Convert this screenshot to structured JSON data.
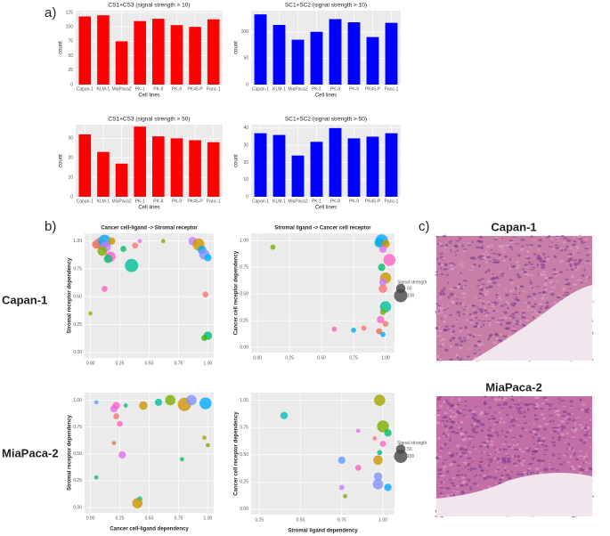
{
  "panel_labels": [
    "a)",
    "b)",
    "c)"
  ],
  "row_labels": [
    "Capan-1",
    "MiaPaca-2"
  ],
  "images": [
    {
      "title": "Capan-1"
    },
    {
      "title": "MiaPaca-2"
    }
  ],
  "chart_data": [
    {
      "type": "bar",
      "title": "CS1+CS3 (signal strength > 10)",
      "xlabel": "Cell lines",
      "ylabel": "count",
      "categories": [
        "Capan-1",
        "KLM-1",
        "MiaPaca2",
        "PK-1",
        "PK-8",
        "PK-9",
        "PK45-P",
        "Panc-1"
      ],
      "values": [
        118,
        120,
        75,
        110,
        114,
        103,
        100,
        113
      ],
      "color": "#ff0000",
      "ylim": [
        0,
        128
      ],
      "yticks": [
        0,
        25,
        50,
        75,
        100,
        125
      ],
      "grid": true
    },
    {
      "type": "bar",
      "title": "SC1+SC2 (signal strength > 10)",
      "xlabel": "Cell lines",
      "ylabel": "count",
      "categories": [
        "Capan-1",
        "KLM-1",
        "MiaPaca2",
        "PK-1",
        "PK-8",
        "PK-9",
        "PK45-P",
        "Panc-1"
      ],
      "values": [
        133,
        113,
        85,
        100,
        124,
        118,
        90,
        117
      ],
      "color": "#0000ff",
      "ylim": [
        0,
        140
      ],
      "yticks": [
        0,
        50,
        100
      ],
      "grid": true
    },
    {
      "type": "bar",
      "title": "CS1+CS3 (signal strength > 50)",
      "xlabel": "Cell lines",
      "ylabel": "count",
      "categories": [
        "Capan-1",
        "KLM-1",
        "MiaPaca2",
        "PK-1",
        "PK-8",
        "PK-9",
        "PK45-P",
        "Panc-1"
      ],
      "values": [
        32,
        23,
        17,
        36,
        31,
        30,
        29,
        28
      ],
      "color": "#ff0000",
      "ylim": [
        0,
        37
      ],
      "yticks": [
        0,
        10,
        20,
        30
      ],
      "grid": true
    },
    {
      "type": "bar",
      "title": "SC1+SC2 (signal strength > 50)",
      "xlabel": "Cell lines",
      "ylabel": "count",
      "categories": [
        "Capan-1",
        "KLM-1",
        "MiaPaca2",
        "PK-1",
        "PK-8",
        "PK-9",
        "PK45-P",
        "Panc-1"
      ],
      "values": [
        37,
        36,
        24,
        32,
        40,
        34,
        35,
        37
      ],
      "color": "#0000ff",
      "ylim": [
        0,
        42
      ],
      "yticks": [
        0,
        10,
        20,
        30,
        40
      ],
      "grid": true
    },
    {
      "type": "scatter",
      "title": "Cancer cell-ligand -> Stromal receptor",
      "ylabel": "Stromal receptor dependency",
      "x": [
        0.05,
        0.08,
        0.12,
        0.13,
        0.1,
        0.17,
        0.15,
        0.18,
        0.28,
        0.35,
        0.38,
        0.42,
        0.62,
        0.87,
        0.92,
        0.95,
        0.97,
        1.0,
        0.98,
        1.0,
        0.97,
        0.12,
        0.0
      ],
      "y": [
        0.97,
        0.98,
        1.0,
        0.95,
        0.91,
        0.86,
        0.84,
        1.0,
        0.93,
        0.78,
        0.96,
        1.0,
        1.0,
        1.0,
        0.97,
        0.92,
        0.88,
        0.85,
        0.52,
        0.15,
        0.13,
        0.57,
        0.35
      ],
      "sizes": [
        40,
        70,
        90,
        60,
        50,
        60,
        40,
        30,
        20,
        100,
        20,
        10,
        10,
        40,
        80,
        40,
        60,
        30,
        20,
        40,
        20,
        20,
        10
      ],
      "colors": [
        "#e8734a",
        "#f8766d",
        "#00a9ff",
        "#c77cff",
        "#7cae00",
        "#ff61c3",
        "#00bf7d",
        "#cd9600",
        "#00be67",
        "#00c19a",
        "#f8766d",
        "#e76bf3",
        "#7cae00",
        "#c77cff",
        "#cd9600",
        "#00a9ff",
        "#8494ff",
        "#00b0f6",
        "#f8766d",
        "#00bf7d",
        "#39b600",
        "#ff62bc",
        "#a3a500"
      ],
      "xlim": [
        -0.05,
        1.05
      ],
      "ylim": [
        -0.05,
        1.07
      ],
      "xticks": [
        {
          "value": 0,
          "label": "0.00"
        },
        {
          "value": 0.25,
          "label": "0.25"
        },
        {
          "value": 0.5,
          "label": "0.50"
        },
        {
          "value": 0.75,
          "label": "0.75"
        },
        {
          "value": 1,
          "label": "1.00"
        }
      ],
      "yticks": [
        {
          "value": 0,
          "label": "0.00"
        },
        {
          "value": 0.25,
          "label": "0.25"
        },
        {
          "value": 0.5,
          "label": "0.50"
        },
        {
          "value": 0.75,
          "label": "0.75"
        },
        {
          "value": 1,
          "label": "1.00"
        }
      ],
      "grid": true
    },
    {
      "type": "scatter",
      "title": "Stromal ligand -> Cancer cell receptor",
      "ylabel": "Cancer cell receptor dependency",
      "x": [
        0.12,
        0.95,
        0.97,
        1.0,
        0.98,
        1.03,
        0.97,
        1.0,
        0.98,
        0.98,
        1.0,
        0.98,
        0.96,
        0.75,
        0.83,
        0.6,
        0.95,
        1.0,
        0.98
      ],
      "y": [
        0.94,
        0.98,
        1.0,
        0.97,
        0.92,
        0.82,
        0.75,
        0.65,
        0.61,
        0.55,
        0.38,
        0.33,
        0.26,
        0.16,
        0.18,
        0.17,
        0.15,
        0.22,
        0.12
      ],
      "sizes": [
        15,
        50,
        90,
        40,
        30,
        80,
        30,
        70,
        30,
        40,
        70,
        20,
        30,
        15,
        15,
        15,
        20,
        20,
        15
      ],
      "colors": [
        "#7cae00",
        "#00bfc4",
        "#00a9ff",
        "#cd9600",
        "#e76bf3",
        "#ff61c3",
        "#00be67",
        "#cd9600",
        "#c77cff",
        "#f8766d",
        "#00c19a",
        "#7cae00",
        "#ff61c3",
        "#00b0f6",
        "#f8766d",
        "#ff62bc",
        "#e8734a",
        "#f8766d",
        "#00a9ff"
      ],
      "xlim": [
        -0.05,
        1.07
      ],
      "ylim": [
        -0.05,
        1.07
      ],
      "xticks": [
        {
          "value": 0,
          "label": "0.00"
        },
        {
          "value": 0.25,
          "label": "0.25"
        },
        {
          "value": 0.5,
          "label": "0.50"
        },
        {
          "value": 0.75,
          "label": "0.75"
        },
        {
          "value": 1,
          "label": "1.00"
        }
      ],
      "yticks": [
        {
          "value": 0,
          "label": "0.00"
        },
        {
          "value": 0.25,
          "label": "0.25"
        },
        {
          "value": 0.5,
          "label": "0.50"
        },
        {
          "value": 0.75,
          "label": "0.75"
        },
        {
          "value": 1,
          "label": "1.00"
        }
      ],
      "grid": true,
      "size_legend": {
        "title": "Signal strength",
        "values": [
          50,
          100
        ]
      }
    },
    {
      "type": "scatter",
      "xlabel": "Cancer cell-ligand  dependency",
      "ylabel": "Stromal receptor dependency",
      "x": [
        0.05,
        0.2,
        0.22,
        0.22,
        0.25,
        0.3,
        0.45,
        0.58,
        0.68,
        0.8,
        0.86,
        0.98,
        0.97,
        1.0,
        0.78,
        0.2,
        0.27,
        0.05,
        0.42,
        0.4
      ],
      "y": [
        0.98,
        0.92,
        0.95,
        0.85,
        0.78,
        0.95,
        0.95,
        0.98,
        1.0,
        0.96,
        1.0,
        0.97,
        0.65,
        0.58,
        0.45,
        0.6,
        0.49,
        0.28,
        0.08,
        0.04
      ],
      "sizes": [
        10,
        30,
        30,
        20,
        20,
        10,
        40,
        30,
        60,
        100,
        60,
        80,
        10,
        10,
        10,
        10,
        30,
        10,
        15,
        60
      ],
      "colors": [
        "#619cff",
        "#e76bf3",
        "#ff61c3",
        "#f8766d",
        "#ff62bc",
        "#00bf7d",
        "#cd9600",
        "#00c19a",
        "#7cae00",
        "#cd9600",
        "#8494ff",
        "#00a9ff",
        "#a3a500",
        "#7cae00",
        "#00be67",
        "#e8734a",
        "#e76bf3",
        "#00bf7d",
        "#00c19a",
        "#cd9600"
      ],
      "xlim": [
        -0.05,
        1.05
      ],
      "ylim": [
        -0.05,
        1.07
      ],
      "xticks": [
        {
          "value": 0,
          "label": "0.00"
        },
        {
          "value": 0.25,
          "label": "0.25"
        },
        {
          "value": 0.5,
          "label": "0.50"
        },
        {
          "value": 0.75,
          "label": "0.75"
        },
        {
          "value": 1,
          "label": "1.00"
        }
      ],
      "yticks": [
        {
          "value": 0,
          "label": "0.00"
        },
        {
          "value": 0.25,
          "label": "0.25"
        },
        {
          "value": 0.5,
          "label": "0.50"
        },
        {
          "value": 0.75,
          "label": "0.75"
        },
        {
          "value": 1,
          "label": "1.00"
        }
      ],
      "grid": true
    },
    {
      "type": "scatter",
      "xlabel": "Stromal ligand  dependency",
      "ylabel": "Cancer cell receptor dependency",
      "x": [
        0.4,
        0.98,
        1.0,
        1.03,
        0.85,
        0.95,
        1.0,
        0.98,
        0.75,
        0.97,
        0.85,
        0.97,
        0.75,
        0.97,
        1.03,
        0.77
      ],
      "y": [
        0.86,
        1.0,
        0.76,
        0.7,
        0.72,
        0.65,
        0.6,
        0.52,
        0.45,
        0.45,
        0.38,
        0.3,
        0.2,
        0.23,
        0.2,
        0.12
      ],
      "sizes": [
        30,
        70,
        80,
        30,
        10,
        10,
        20,
        15,
        30,
        50,
        20,
        40,
        15,
        60,
        30,
        10
      ],
      "colors": [
        "#00bfc4",
        "#a3a500",
        "#7cae00",
        "#00be67",
        "#e76bf3",
        "#f8766d",
        "#ff61c3",
        "#00bf7d",
        "#619cff",
        "#cd9600",
        "#ff62bc",
        "#8494ff",
        "#c77cff",
        "#8494ff",
        "#00a9ff",
        "#7cae00"
      ],
      "xlim": [
        0.2,
        1.07
      ],
      "ylim": [
        -0.05,
        1.07
      ],
      "xticks": [
        {
          "value": 0.25,
          "label": "0.25"
        },
        {
          "value": 0.5,
          "label": "0.50"
        },
        {
          "value": 0.75,
          "label": "0.75"
        },
        {
          "value": 1,
          "label": "1.00"
        }
      ],
      "yticks": [
        {
          "value": 0,
          "label": "0.00"
        },
        {
          "value": 0.25,
          "label": "0.25"
        },
        {
          "value": 0.5,
          "label": "0.50"
        },
        {
          "value": 0.75,
          "label": "0.75"
        },
        {
          "value": 1,
          "label": "1.00"
        }
      ],
      "grid": true,
      "size_legend": {
        "title": "Signal strength",
        "values": [
          50,
          100
        ]
      }
    }
  ]
}
